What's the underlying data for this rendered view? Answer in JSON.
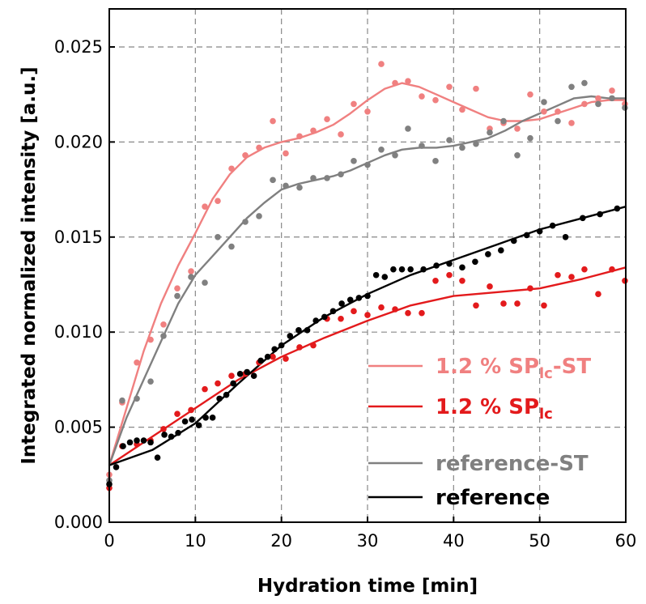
{
  "chart_data": {
    "type": "scatter",
    "xlabel": "Hydration time [min]",
    "ylabel": "Integrated normalized intensity [a.u.]",
    "xlim": [
      0,
      60
    ],
    "ylim": [
      0,
      0.027
    ],
    "x_ticks": [
      "0",
      "10",
      "20",
      "30",
      "40",
      "50",
      "60"
    ],
    "y_ticks": [
      "0.000",
      "0.005",
      "0.010",
      "0.015",
      "0.020",
      "0.025"
    ],
    "grid": true,
    "legend_position": "bottom-right",
    "series": [
      {
        "name": "1.2 % SPlc-ST",
        "name_main": "1.2 % SP",
        "name_sub": "lc",
        "name_suffix": "-ST",
        "color": "#f08080",
        "points": [
          [
            0,
            0.0025
          ],
          [
            1.5,
            0.0063
          ],
          [
            3.2,
            0.0084
          ],
          [
            4.8,
            0.0096
          ],
          [
            6.3,
            0.0104
          ],
          [
            7.9,
            0.0123
          ],
          [
            9.5,
            0.0132
          ],
          [
            11.1,
            0.0166
          ],
          [
            12.6,
            0.0169
          ],
          [
            14.2,
            0.0186
          ],
          [
            15.8,
            0.0193
          ],
          [
            17.4,
            0.0197
          ],
          [
            19.0,
            0.0211
          ],
          [
            20.5,
            0.0194
          ],
          [
            22.1,
            0.0203
          ],
          [
            23.7,
            0.0206
          ],
          [
            25.3,
            0.0212
          ],
          [
            26.9,
            0.0204
          ],
          [
            28.4,
            0.022
          ],
          [
            30.0,
            0.0216
          ],
          [
            31.6,
            0.0241
          ],
          [
            33.2,
            0.0231
          ],
          [
            34.7,
            0.0232
          ],
          [
            36.3,
            0.0224
          ],
          [
            37.9,
            0.0222
          ],
          [
            39.5,
            0.0229
          ],
          [
            41.0,
            0.0217
          ],
          [
            42.6,
            0.0228
          ],
          [
            44.2,
            0.0207
          ],
          [
            45.8,
            0.021
          ],
          [
            47.4,
            0.0207
          ],
          [
            48.9,
            0.0225
          ],
          [
            50.5,
            0.0216
          ],
          [
            52.1,
            0.0216
          ],
          [
            53.7,
            0.021
          ],
          [
            55.2,
            0.022
          ],
          [
            56.8,
            0.0223
          ],
          [
            58.4,
            0.0227
          ],
          [
            59.9,
            0.022
          ]
        ],
        "fit": [
          [
            0,
            0.003
          ],
          [
            2,
            0.006
          ],
          [
            4,
            0.009
          ],
          [
            6,
            0.0115
          ],
          [
            8,
            0.0135
          ],
          [
            10,
            0.0152
          ],
          [
            12,
            0.017
          ],
          [
            14,
            0.0183
          ],
          [
            16,
            0.0192
          ],
          [
            18,
            0.0197
          ],
          [
            20,
            0.02
          ],
          [
            22,
            0.0202
          ],
          [
            24,
            0.0205
          ],
          [
            26,
            0.0209
          ],
          [
            28,
            0.0215
          ],
          [
            30,
            0.0222
          ],
          [
            32,
            0.0228
          ],
          [
            34,
            0.0231
          ],
          [
            36,
            0.0229
          ],
          [
            38,
            0.0225
          ],
          [
            40,
            0.0221
          ],
          [
            42,
            0.0217
          ],
          [
            44,
            0.0213
          ],
          [
            46,
            0.0211
          ],
          [
            48,
            0.0211
          ],
          [
            50,
            0.0212
          ],
          [
            52,
            0.0215
          ],
          [
            54,
            0.0218
          ],
          [
            56,
            0.0221
          ],
          [
            58,
            0.0222
          ],
          [
            60,
            0.0222
          ]
        ]
      },
      {
        "name": "1.2 % SPlc",
        "name_main": "1.2 % SP",
        "name_sub": "lc",
        "name_suffix": "",
        "color": "#e31a1c",
        "points": [
          [
            0,
            0.0018
          ],
          [
            1.5,
            0.004
          ],
          [
            3.2,
            0.0041
          ],
          [
            4.8,
            0.0043
          ],
          [
            6.3,
            0.0049
          ],
          [
            7.9,
            0.0057
          ],
          [
            9.5,
            0.0059
          ],
          [
            11.1,
            0.007
          ],
          [
            12.6,
            0.0073
          ],
          [
            14.2,
            0.0077
          ],
          [
            15.8,
            0.0078
          ],
          [
            17.4,
            0.0084
          ],
          [
            19.0,
            0.0087
          ],
          [
            20.5,
            0.0086
          ],
          [
            22.1,
            0.0092
          ],
          [
            23.7,
            0.0093
          ],
          [
            25.3,
            0.0107
          ],
          [
            26.9,
            0.0107
          ],
          [
            28.4,
            0.0111
          ],
          [
            30.0,
            0.0109
          ],
          [
            31.6,
            0.0113
          ],
          [
            33.2,
            0.0112
          ],
          [
            34.7,
            0.011
          ],
          [
            36.3,
            0.011
          ],
          [
            37.9,
            0.0127
          ],
          [
            39.5,
            0.013
          ],
          [
            41.0,
            0.0127
          ],
          [
            42.6,
            0.0114
          ],
          [
            44.2,
            0.0124
          ],
          [
            45.8,
            0.0115
          ],
          [
            47.4,
            0.0115
          ],
          [
            48.9,
            0.0123
          ],
          [
            50.5,
            0.0114
          ],
          [
            52.1,
            0.013
          ],
          [
            53.7,
            0.0129
          ],
          [
            55.2,
            0.0133
          ],
          [
            56.8,
            0.012
          ],
          [
            58.4,
            0.0133
          ],
          [
            59.9,
            0.0127
          ]
        ],
        "fit": [
          [
            0,
            0.003
          ],
          [
            5,
            0.0045
          ],
          [
            10,
            0.006
          ],
          [
            15,
            0.0075
          ],
          [
            20,
            0.0087
          ],
          [
            25,
            0.0097
          ],
          [
            30,
            0.0106
          ],
          [
            35,
            0.0114
          ],
          [
            40,
            0.0119
          ],
          [
            45,
            0.0121
          ],
          [
            50,
            0.0123
          ],
          [
            55,
            0.0128
          ],
          [
            60,
            0.0134
          ]
        ]
      },
      {
        "name": "reference-ST",
        "name_main": "reference-ST",
        "name_sub": "",
        "name_suffix": "",
        "color": "#808080",
        "points": [
          [
            0,
            0.0022
          ],
          [
            1.5,
            0.0064
          ],
          [
            3.2,
            0.0065
          ],
          [
            4.8,
            0.0074
          ],
          [
            6.3,
            0.0098
          ],
          [
            7.9,
            0.0119
          ],
          [
            9.5,
            0.0129
          ],
          [
            11.1,
            0.0126
          ],
          [
            12.6,
            0.015
          ],
          [
            14.2,
            0.0145
          ],
          [
            15.8,
            0.0158
          ],
          [
            17.4,
            0.0161
          ],
          [
            19.0,
            0.018
          ],
          [
            20.5,
            0.0177
          ],
          [
            22.1,
            0.0176
          ],
          [
            23.7,
            0.0181
          ],
          [
            25.3,
            0.0181
          ],
          [
            26.9,
            0.0183
          ],
          [
            28.4,
            0.019
          ],
          [
            30.0,
            0.0188
          ],
          [
            31.6,
            0.0196
          ],
          [
            33.2,
            0.0193
          ],
          [
            34.7,
            0.0207
          ],
          [
            36.3,
            0.0198
          ],
          [
            37.9,
            0.019
          ],
          [
            39.5,
            0.0201
          ],
          [
            41.0,
            0.0197
          ],
          [
            42.6,
            0.0199
          ],
          [
            44.2,
            0.0205
          ],
          [
            45.8,
            0.0211
          ],
          [
            47.4,
            0.0193
          ],
          [
            48.9,
            0.0202
          ],
          [
            50.5,
            0.0221
          ],
          [
            52.1,
            0.0211
          ],
          [
            53.7,
            0.0229
          ],
          [
            55.2,
            0.0231
          ],
          [
            56.8,
            0.022
          ],
          [
            58.4,
            0.0223
          ],
          [
            59.9,
            0.0218
          ]
        ],
        "fit": [
          [
            0,
            0.003
          ],
          [
            2,
            0.0055
          ],
          [
            4,
            0.0075
          ],
          [
            6,
            0.0095
          ],
          [
            8,
            0.0115
          ],
          [
            10,
            0.013
          ],
          [
            12,
            0.014
          ],
          [
            14,
            0.015
          ],
          [
            16,
            0.016
          ],
          [
            18,
            0.0168
          ],
          [
            20,
            0.0175
          ],
          [
            22,
            0.0178
          ],
          [
            24,
            0.018
          ],
          [
            26,
            0.0182
          ],
          [
            28,
            0.0185
          ],
          [
            30,
            0.0189
          ],
          [
            32,
            0.0193
          ],
          [
            34,
            0.0196
          ],
          [
            36,
            0.0197
          ],
          [
            38,
            0.0197
          ],
          [
            40,
            0.0198
          ],
          [
            42,
            0.02
          ],
          [
            44,
            0.0202
          ],
          [
            46,
            0.0206
          ],
          [
            48,
            0.0211
          ],
          [
            50,
            0.0215
          ],
          [
            52,
            0.0219
          ],
          [
            54,
            0.0223
          ],
          [
            56,
            0.0224
          ],
          [
            58,
            0.0223
          ],
          [
            60,
            0.0223
          ]
        ]
      },
      {
        "name": "reference",
        "name_main": "reference",
        "name_sub": "",
        "name_suffix": "",
        "color": "#000000",
        "points": [
          [
            0,
            0.002
          ],
          [
            0.8,
            0.0029
          ],
          [
            1.6,
            0.004
          ],
          [
            2.4,
            0.0042
          ],
          [
            3.2,
            0.0043
          ],
          [
            4.0,
            0.0043
          ],
          [
            4.8,
            0.0042
          ],
          [
            5.6,
            0.0034
          ],
          [
            6.4,
            0.0046
          ],
          [
            7.2,
            0.0045
          ],
          [
            8.0,
            0.0047
          ],
          [
            8.8,
            0.0053
          ],
          [
            9.6,
            0.0054
          ],
          [
            10.4,
            0.0051
          ],
          [
            11.2,
            0.0055
          ],
          [
            12.0,
            0.0055
          ],
          [
            12.8,
            0.0065
          ],
          [
            13.6,
            0.0067
          ],
          [
            14.4,
            0.0073
          ],
          [
            15.2,
            0.0078
          ],
          [
            16.0,
            0.0079
          ],
          [
            16.8,
            0.0077
          ],
          [
            17.6,
            0.0085
          ],
          [
            18.4,
            0.0087
          ],
          [
            19.2,
            0.0091
          ],
          [
            20.0,
            0.0093
          ],
          [
            21.0,
            0.0098
          ],
          [
            22.0,
            0.0101
          ],
          [
            23.0,
            0.0101
          ],
          [
            24.0,
            0.0106
          ],
          [
            25.0,
            0.0108
          ],
          [
            26.0,
            0.0111
          ],
          [
            27.0,
            0.0115
          ],
          [
            28.0,
            0.0117
          ],
          [
            29.0,
            0.0118
          ],
          [
            30.0,
            0.0119
          ],
          [
            31.0,
            0.013
          ],
          [
            32.0,
            0.0129
          ],
          [
            33.0,
            0.0133
          ],
          [
            34.0,
            0.0133
          ],
          [
            35.0,
            0.0133
          ],
          [
            36.5,
            0.0133
          ],
          [
            38.0,
            0.0135
          ],
          [
            39.5,
            0.0136
          ],
          [
            41.0,
            0.0134
          ],
          [
            42.5,
            0.0137
          ],
          [
            44.0,
            0.0141
          ],
          [
            45.5,
            0.0143
          ],
          [
            47.0,
            0.0148
          ],
          [
            48.5,
            0.0151
          ],
          [
            50.0,
            0.0153
          ],
          [
            51.5,
            0.0156
          ],
          [
            53.0,
            0.015
          ],
          [
            55.0,
            0.016
          ],
          [
            57.0,
            0.0162
          ],
          [
            59.0,
            0.0165
          ]
        ],
        "fit": [
          [
            0,
            0.003
          ],
          [
            5,
            0.0038
          ],
          [
            10,
            0.0052
          ],
          [
            15,
            0.0073
          ],
          [
            20,
            0.0093
          ],
          [
            25,
            0.0108
          ],
          [
            30,
            0.012
          ],
          [
            35,
            0.013
          ],
          [
            40,
            0.0138
          ],
          [
            45,
            0.0146
          ],
          [
            50,
            0.0154
          ],
          [
            55,
            0.016
          ],
          [
            60,
            0.0166
          ]
        ]
      }
    ]
  }
}
